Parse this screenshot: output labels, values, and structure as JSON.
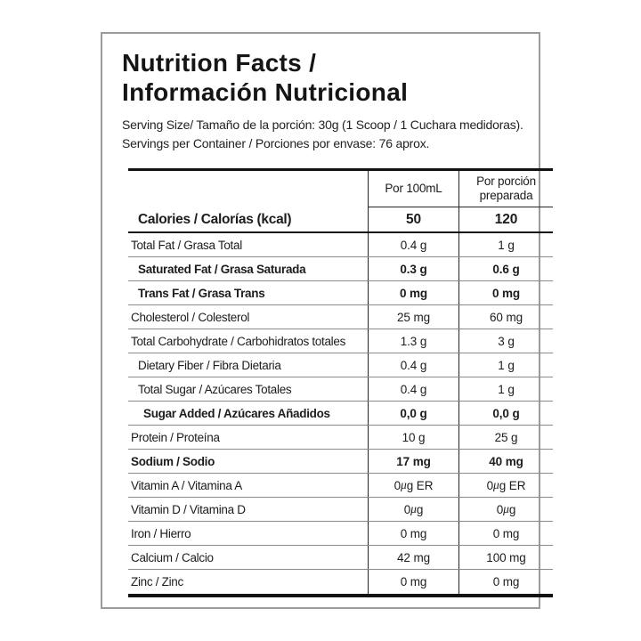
{
  "label": {
    "title_line1": "Nutrition Facts /",
    "title_line2": "Información Nutricional",
    "serving_size": "Serving Size/ Tamaño de la porción: 30g  (1 Scoop / 1 Cuchara medidoras).",
    "servings_per_container": "Servings per Container / Porciones por envase: 76 aprox."
  },
  "table": {
    "column_headers": {
      "per_100ml": "Por 100mL",
      "per_porcion": "Por porción preparada"
    },
    "rows": [
      {
        "label": "Calories / Calorías (kcal)",
        "per_100ml": "50",
        "per_porcion": "120",
        "bold": true,
        "indent": 1,
        "variant": "calories"
      },
      {
        "label": "Total Fat / Grasa Total",
        "per_100ml": "0.4 g",
        "per_porcion": "1 g",
        "bold": false,
        "indent": 0
      },
      {
        "label": "Saturated Fat / Grasa Saturada",
        "per_100ml": "0.3 g",
        "per_porcion": "0.6 g",
        "bold": true,
        "indent": 1
      },
      {
        "label": "Trans Fat / Grasa Trans",
        "per_100ml": "0 mg",
        "per_porcion": "0 mg",
        "bold": true,
        "indent": 1
      },
      {
        "label": "Cholesterol / Colesterol",
        "per_100ml": "25 mg",
        "per_porcion": "60 mg",
        "bold": false,
        "indent": 0
      },
      {
        "label": "Total Carbohydrate / Carbohidratos totales",
        "per_100ml": "1.3 g",
        "per_porcion": "3 g",
        "bold": false,
        "indent": 0
      },
      {
        "label": "Dietary Fiber / Fibra Dietaria",
        "per_100ml": "0.4 g",
        "per_porcion": "1 g",
        "bold": false,
        "indent": 1
      },
      {
        "label": "Total Sugar / Azúcares Totales",
        "per_100ml": "0.4 g",
        "per_porcion": "1 g",
        "bold": false,
        "indent": 1
      },
      {
        "label": "Sugar Added / Azúcares Añadidos",
        "per_100ml": "0,0 g",
        "per_porcion": "0,0 g",
        "bold": true,
        "indent": 2
      },
      {
        "label": "Protein / Proteína",
        "per_100ml": "10 g",
        "per_porcion": "25 g",
        "bold": false,
        "indent": 0
      },
      {
        "label": "Sodium / Sodio",
        "per_100ml": "17 mg",
        "per_porcion": "40 mg",
        "bold": true,
        "indent": 0
      },
      {
        "label": "Vitamin A / Vitamina A",
        "per_100ml": "0 μg ER",
        "per_porcion": "0 μg ER",
        "bold": false,
        "indent": 0
      },
      {
        "label": "Vitamin D / Vitamina D",
        "per_100ml": "0 μg",
        "per_porcion": "0 μg",
        "bold": false,
        "indent": 0
      },
      {
        "label": "Iron / Hierro",
        "per_100ml": "0 mg",
        "per_porcion": "0 mg",
        "bold": false,
        "indent": 0
      },
      {
        "label": "Calcium / Calcio",
        "per_100ml": "42 mg",
        "per_porcion": "100 mg",
        "bold": false,
        "indent": 0
      },
      {
        "label": "Zinc / Zinc",
        "per_100ml": "0 mg",
        "per_porcion": "0 mg",
        "bold": false,
        "indent": 0
      }
    ]
  },
  "colors": {
    "background": "#ffffff",
    "text": "#1c1c1c",
    "heavy_rule": "#121212",
    "light_rule": "#8a8a8a",
    "box_border": "#9b9b9b"
  }
}
